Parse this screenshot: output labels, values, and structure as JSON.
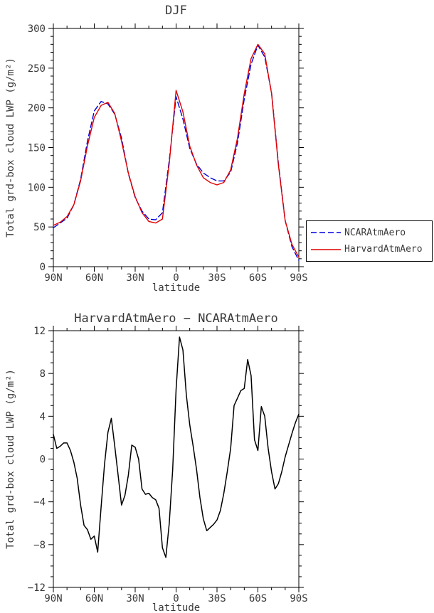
{
  "figure": {
    "background": "#ffffff",
    "text_color": "#3a3a3a",
    "accent_colors": {
      "ncar_blue": "#0000dd",
      "harvard_red": "#e00000",
      "difference_black": "#000000"
    }
  },
  "chart_data": [
    {
      "type": "line",
      "title": "DJF",
      "xlabel": "latitude",
      "ylabel": "Total grd-box cloud LWP (g/m²)",
      "xlim": [
        90,
        -90
      ],
      "ylim": [
        0,
        300
      ],
      "grid": false,
      "legend_position": "outside-right",
      "xticks": {
        "major": [
          {
            "v": 90,
            "label": "90N"
          },
          {
            "v": 60,
            "label": "60N"
          },
          {
            "v": 30,
            "label": "30N"
          },
          {
            "v": 0,
            "label": "0"
          },
          {
            "v": -30,
            "label": "30S"
          },
          {
            "v": -60,
            "label": "60S"
          },
          {
            "v": -90,
            "label": "90S"
          }
        ],
        "minor_step": 10
      },
      "yticks": {
        "major_step": 50,
        "minor_step": 10
      },
      "x": [
        90,
        85,
        80,
        75,
        70,
        65,
        60,
        55,
        50,
        45,
        40,
        35,
        30,
        25,
        20,
        15,
        10,
        5,
        0,
        -5,
        -10,
        -15,
        -20,
        -25,
        -30,
        -35,
        -40,
        -45,
        -50,
        -55,
        -60,
        -65,
        -70,
        -75,
        -80,
        -85,
        -90
      ],
      "series": [
        {
          "name": "NCARAtmAero",
          "color": "#0000dd",
          "dash": true,
          "values": [
            49,
            55,
            61,
            78,
            110,
            158,
            196,
            208,
            205,
            192,
            162,
            117,
            87,
            70,
            60,
            59,
            68,
            134,
            214,
            186,
            149,
            129,
            118,
            112,
            108,
            108,
            119,
            156,
            211,
            255,
            279,
            264,
            219,
            130,
            58,
            25,
            8
          ]
        },
        {
          "name": "HarvardAtmAero",
          "color": "#e00000",
          "dash": false,
          "values": [
            52,
            56,
            63,
            78,
            108,
            152,
            188,
            203,
            207,
            193,
            158,
            118,
            88,
            68,
            57,
            55,
            60,
            130,
            222,
            195,
            152,
            128,
            112,
            106,
            103,
            106,
            122,
            162,
            218,
            262,
            280,
            268,
            218,
            128,
            58,
            28,
            12
          ]
        }
      ]
    },
    {
      "type": "line",
      "title": "HarvardAtmAero − NCARAtmAero",
      "xlabel": "latitude",
      "ylabel": "Total grd-box cloud LWP (g/m²)",
      "xlim": [
        90,
        -90
      ],
      "ylim": [
        -12,
        12
      ],
      "grid": false,
      "xticks": {
        "major": [
          {
            "v": 90,
            "label": "90N"
          },
          {
            "v": 60,
            "label": "60N"
          },
          {
            "v": 30,
            "label": "30N"
          },
          {
            "v": 0,
            "label": "0"
          },
          {
            "v": -30,
            "label": "30S"
          },
          {
            "v": -60,
            "label": "60S"
          },
          {
            "v": -90,
            "label": "90S"
          }
        ],
        "minor_step": 10
      },
      "yticks": {
        "major_step": 4,
        "minor_step": 1
      },
      "x": [
        90,
        87.5,
        85,
        82.5,
        80,
        77.5,
        75,
        72.5,
        70,
        67.5,
        65,
        62.5,
        60,
        57.5,
        55,
        52.5,
        50,
        47.5,
        45,
        42.5,
        40,
        37.5,
        35,
        32.5,
        30,
        27.5,
        25,
        22.5,
        20,
        17.5,
        15,
        12.5,
        10,
        7.5,
        5,
        2.5,
        0,
        -2.5,
        -5,
        -7.5,
        -10,
        -12.5,
        -15,
        -17.5,
        -20,
        -22.5,
        -25,
        -27.5,
        -30,
        -32.5,
        -35,
        -37.5,
        -40,
        -42.5,
        -45,
        -47.5,
        -50,
        -52.5,
        -55,
        -57.5,
        -60,
        -62.5,
        -65,
        -67.5,
        -70,
        -72.5,
        -75,
        -77.5,
        -80,
        -82.5,
        -85,
        -87.5,
        -90
      ],
      "series": [
        {
          "name": "HarvardAtmAero - NCARAtmAero",
          "color": "#000000",
          "dash": false,
          "values": [
            2.3,
            1.0,
            1.2,
            1.5,
            1.5,
            0.8,
            -0.3,
            -1.8,
            -4.3,
            -6.2,
            -6.6,
            -7.5,
            -7.2,
            -8.7,
            -4.5,
            -0.5,
            2.5,
            3.8,
            1.2,
            -1.5,
            -4.3,
            -3.4,
            -1.5,
            1.3,
            1.1,
            0.0,
            -2.8,
            -3.3,
            -3.2,
            -3.6,
            -3.8,
            -4.6,
            -8.3,
            -9.2,
            -6.0,
            -1.0,
            6.5,
            11.4,
            10.2,
            6.0,
            3.2,
            1.2,
            -1.0,
            -3.6,
            -5.6,
            -6.7,
            -6.4,
            -6.1,
            -5.7,
            -4.8,
            -3.2,
            -1.2,
            1.0,
            5.0,
            5.7,
            6.4,
            6.6,
            9.3,
            7.8,
            1.8,
            0.8,
            4.9,
            4.0,
            1.0,
            -1.2,
            -2.8,
            -2.3,
            -1.2,
            0.2,
            1.3,
            2.4,
            3.4,
            4.2
          ]
        }
      ]
    }
  ]
}
